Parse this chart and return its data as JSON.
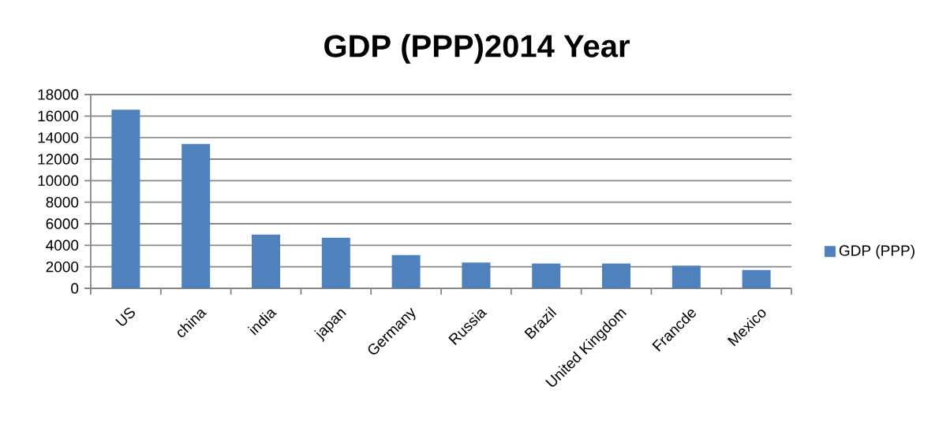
{
  "chart_data": {
    "type": "bar",
    "title": "GDP (PPP)2014 Year",
    "categories": [
      "US",
      "china",
      "india",
      "japan",
      "Germany",
      "Russia",
      "Brazil",
      "United Kingdom",
      "Francde",
      "Mexico"
    ],
    "series": [
      {
        "name": "GDP (PPP)",
        "color": "#4f81bd",
        "values": [
          16600,
          13400,
          5000,
          4700,
          3100,
          2400,
          2300,
          2300,
          2100,
          1700
        ]
      }
    ],
    "ylim": [
      0,
      18000
    ],
    "yticks": [
      0,
      2000,
      4000,
      6000,
      8000,
      10000,
      12000,
      14000,
      16000,
      18000
    ],
    "grid": "y",
    "legend": "right"
  }
}
